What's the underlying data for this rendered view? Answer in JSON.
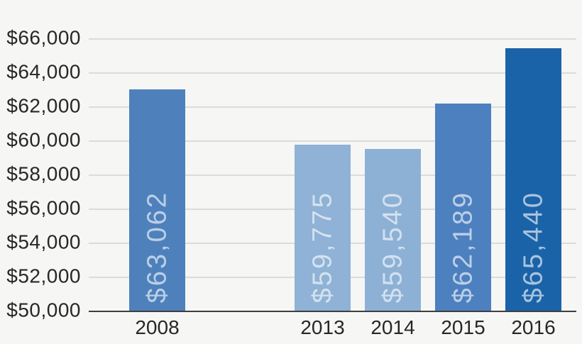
{
  "chart_data": {
    "type": "bar",
    "categories": [
      "2008",
      "2013",
      "2014",
      "2015",
      "2016"
    ],
    "values": [
      63062,
      59775,
      59540,
      62189,
      65440
    ],
    "bar_labels": [
      "$63,062",
      "$59,775",
      "$59,540",
      "$62,189",
      "$65,440"
    ],
    "bar_colors": [
      "#4e81bc",
      "#8fb2d6",
      "#8db1d5",
      "#4d80bf",
      "#1b63a8"
    ],
    "bar_label_color": "rgba(255,255,255,0.62)",
    "y_ticks": [
      "$66,000",
      "$64,000",
      "$62,000",
      "$60,000",
      "$58,000",
      "$56,000",
      "$54,000",
      "$52,000",
      "$50,000"
    ],
    "y_tick_values": [
      66000,
      64000,
      62000,
      60000,
      58000,
      56000,
      54000,
      52000,
      50000
    ],
    "ylim": [
      50000,
      66000
    ],
    "title": "",
    "xlabel": "",
    "ylabel": "",
    "grid": true,
    "legend": false,
    "background_color": "#f6f6f5",
    "gridline_color": "#dbdbda",
    "axis_line_color": "#3f3f3f",
    "tick_label_color": "#272727"
  }
}
